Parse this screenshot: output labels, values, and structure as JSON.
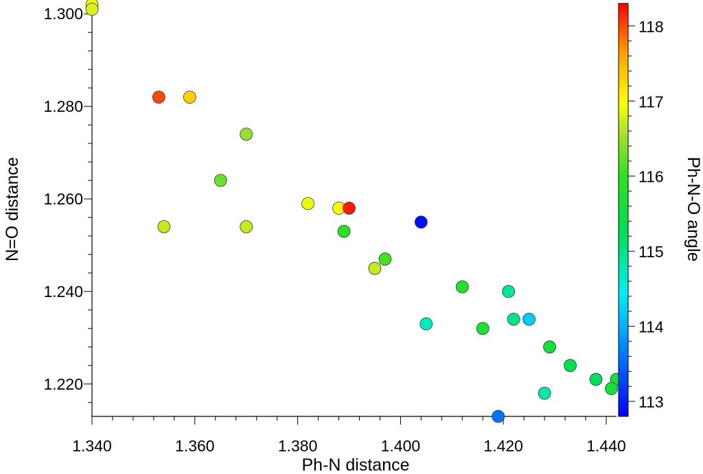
{
  "chart_data": {
    "type": "scatter",
    "xlabel": "Ph-N distance",
    "ylabel": "N=O distance",
    "colorbar_label": "Ph-N-O angle",
    "xlim": [
      1.34,
      1.442
    ],
    "ylim": [
      1.213,
      1.303
    ],
    "xticks": [
      1.34,
      1.36,
      1.38,
      1.4,
      1.42,
      1.44
    ],
    "xtick_labels": [
      "1.340",
      "1.360",
      "1.380",
      "1.400",
      "1.420",
      "1.440"
    ],
    "yticks": [
      1.22,
      1.24,
      1.26,
      1.28,
      1.3
    ],
    "ytick_labels": [
      "1.220",
      "1.240",
      "1.260",
      "1.280",
      "1.300"
    ],
    "color_range": [
      112.8,
      118.3
    ],
    "colorbar_ticks": [
      113,
      114,
      115,
      116,
      117,
      118
    ],
    "colorbar_tick_labels": [
      "113",
      "114",
      "115",
      "116",
      "117",
      "118"
    ],
    "grid": false,
    "points": [
      {
        "x": 1.34,
        "y": 1.302,
        "c": 116.9
      },
      {
        "x": 1.34,
        "y": 1.301,
        "c": 116.8
      },
      {
        "x": 1.353,
        "y": 1.282,
        "c": 118.0
      },
      {
        "x": 1.359,
        "y": 1.282,
        "c": 117.3
      },
      {
        "x": 1.37,
        "y": 1.274,
        "c": 116.5
      },
      {
        "x": 1.365,
        "y": 1.264,
        "c": 116.3
      },
      {
        "x": 1.354,
        "y": 1.254,
        "c": 116.7
      },
      {
        "x": 1.37,
        "y": 1.254,
        "c": 116.7
      },
      {
        "x": 1.382,
        "y": 1.259,
        "c": 116.9
      },
      {
        "x": 1.388,
        "y": 1.258,
        "c": 117.0
      },
      {
        "x": 1.39,
        "y": 1.258,
        "c": 118.2
      },
      {
        "x": 1.389,
        "y": 1.253,
        "c": 115.9
      },
      {
        "x": 1.404,
        "y": 1.255,
        "c": 112.9
      },
      {
        "x": 1.397,
        "y": 1.247,
        "c": 116.1
      },
      {
        "x": 1.395,
        "y": 1.245,
        "c": 116.7
      },
      {
        "x": 1.412,
        "y": 1.241,
        "c": 115.8
      },
      {
        "x": 1.421,
        "y": 1.24,
        "c": 114.9
      },
      {
        "x": 1.405,
        "y": 1.233,
        "c": 114.7
      },
      {
        "x": 1.416,
        "y": 1.232,
        "c": 115.7
      },
      {
        "x": 1.422,
        "y": 1.234,
        "c": 115.0
      },
      {
        "x": 1.425,
        "y": 1.234,
        "c": 114.2
      },
      {
        "x": 1.429,
        "y": 1.228,
        "c": 115.6
      },
      {
        "x": 1.433,
        "y": 1.224,
        "c": 115.4
      },
      {
        "x": 1.438,
        "y": 1.221,
        "c": 115.2
      },
      {
        "x": 1.442,
        "y": 1.221,
        "c": 115.6
      },
      {
        "x": 1.441,
        "y": 1.219,
        "c": 115.6
      },
      {
        "x": 1.428,
        "y": 1.218,
        "c": 114.8
      },
      {
        "x": 1.419,
        "y": 1.213,
        "c": 113.6
      }
    ]
  }
}
